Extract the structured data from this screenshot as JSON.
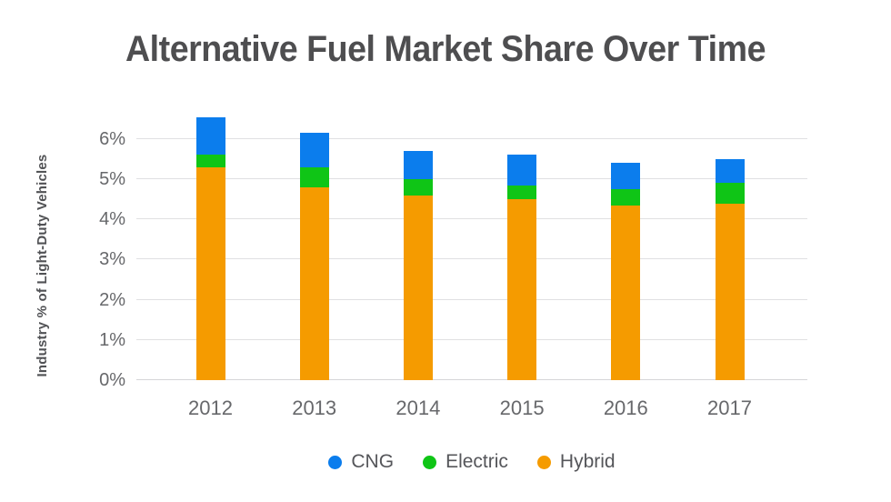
{
  "page": {
    "background": "#ffffff"
  },
  "chart_data": {
    "type": "bar",
    "stacked": true,
    "title": "Alternative Fuel Market Share Over Time",
    "ylabel": "Industry % of Light-Duty Vehicles",
    "xlabel": "",
    "categories": [
      "2012",
      "2013",
      "2014",
      "2015",
      "2016",
      "2017"
    ],
    "series": [
      {
        "name": "CNG",
        "color": "#0b7ded",
        "values": [
          0.95,
          0.85,
          0.7,
          0.75,
          0.65,
          0.6
        ]
      },
      {
        "name": "Electric",
        "color": "#0fc516",
        "values": [
          0.3,
          0.5,
          0.4,
          0.35,
          0.4,
          0.5
        ]
      },
      {
        "name": "Hybrid",
        "color": "#f59b00",
        "values": [
          5.3,
          4.8,
          4.6,
          4.5,
          4.35,
          4.4
        ]
      }
    ],
    "stack_order_bottom_to_top": [
      "Hybrid",
      "Electric",
      "CNG"
    ],
    "totals": [
      6.55,
      6.15,
      5.7,
      5.6,
      5.4,
      5.5
    ],
    "ylim": [
      0,
      6
    ],
    "yticks": [
      "0%",
      "1%",
      "2%",
      "3%",
      "4%",
      "5%",
      "6%"
    ],
    "ytick_values": [
      0,
      1,
      2,
      3,
      4,
      5,
      6
    ],
    "grid": "horizontal",
    "legend_position": "bottom",
    "legend": [
      "CNG",
      "Electric",
      "Hybrid"
    ],
    "colors": {
      "grid": "#e0e0e2",
      "baseline": "#d5d5d8",
      "title_text": "#4e4e50",
      "axis_text": "#67686b",
      "legend_text": "#55565a"
    }
  }
}
